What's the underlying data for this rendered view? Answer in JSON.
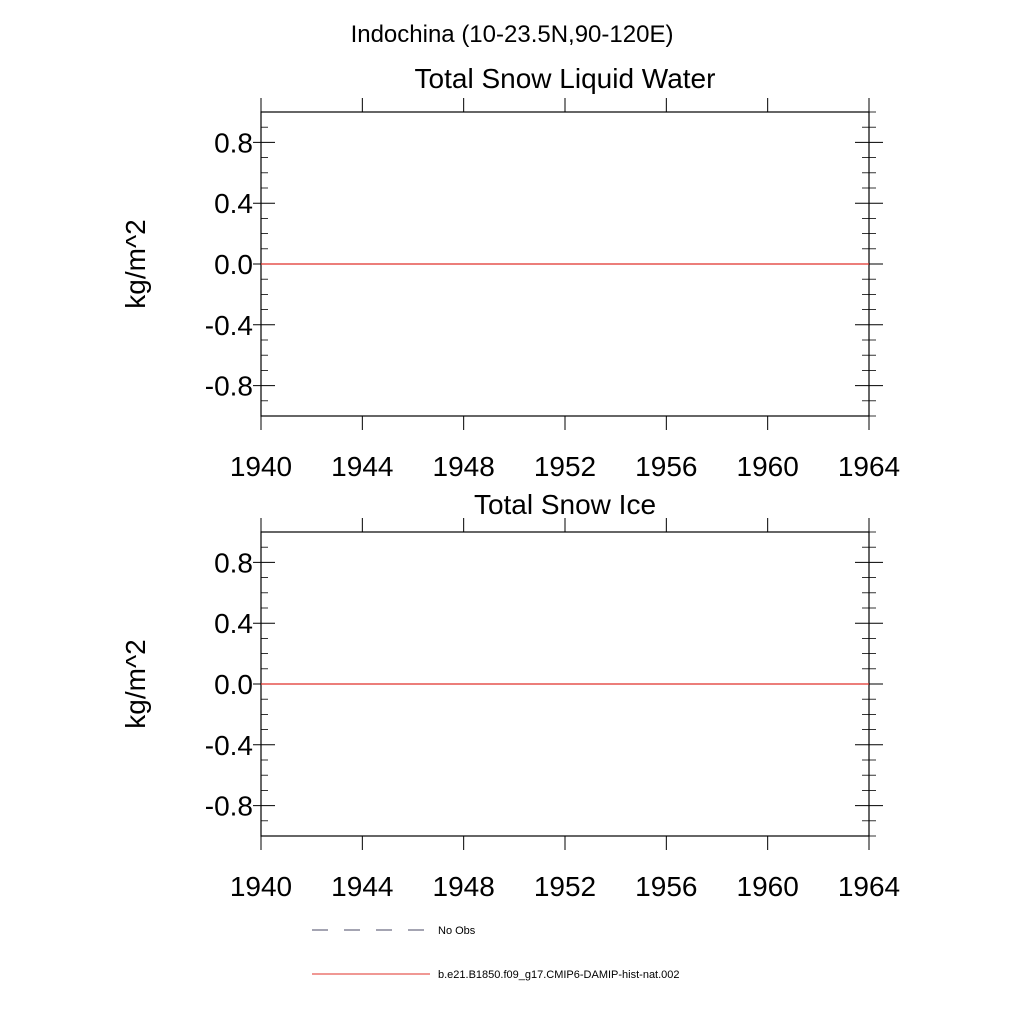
{
  "figure_title": "Indochina (10-23.5N,90-120E)",
  "colors": {
    "axis": "#000000",
    "model_series": "#e0302a",
    "obs_series": "#4a4a66"
  },
  "legend": [
    {
      "label": "No Obs",
      "style": "dashed",
      "color": "#4a4a66"
    },
    {
      "label": "b.e21.B1850.f09_g17.CMIP6-DAMIP-hist-nat.002",
      "style": "solid",
      "color": "#e0302a"
    }
  ],
  "chart_data": [
    {
      "type": "line",
      "title": "Total Snow Liquid Water",
      "xlabel": "",
      "ylabel": "kg/m^2",
      "xlim": [
        1940,
        1964
      ],
      "ylim": [
        -1.0,
        1.0
      ],
      "xticks": [
        1940,
        1944,
        1948,
        1952,
        1956,
        1960,
        1964
      ],
      "yticks": [
        0.8,
        0.4,
        0.0,
        -0.4,
        -0.8
      ],
      "ytick_labels": [
        "0.8",
        "0.4",
        "0.0",
        "-0.4",
        "-0.8"
      ],
      "grid": false,
      "series": [
        {
          "name": "b.e21.B1850.f09_g17.CMIP6-DAMIP-hist-nat.002",
          "x": [
            1940,
            1964
          ],
          "y": [
            0.0,
            0.0
          ]
        }
      ]
    },
    {
      "type": "line",
      "title": "Total Snow Ice",
      "xlabel": "",
      "ylabel": "kg/m^2",
      "xlim": [
        1940,
        1964
      ],
      "ylim": [
        -1.0,
        1.0
      ],
      "xticks": [
        1940,
        1944,
        1948,
        1952,
        1956,
        1960,
        1964
      ],
      "yticks": [
        0.8,
        0.4,
        0.0,
        -0.4,
        -0.8
      ],
      "ytick_labels": [
        "0.8",
        "0.4",
        "0.0",
        "-0.4",
        "-0.8"
      ],
      "grid": false,
      "series": [
        {
          "name": "b.e21.B1850.f09_g17.CMIP6-DAMIP-hist-nat.002",
          "x": [
            1940,
            1964
          ],
          "y": [
            0.0,
            0.0
          ]
        }
      ]
    }
  ]
}
